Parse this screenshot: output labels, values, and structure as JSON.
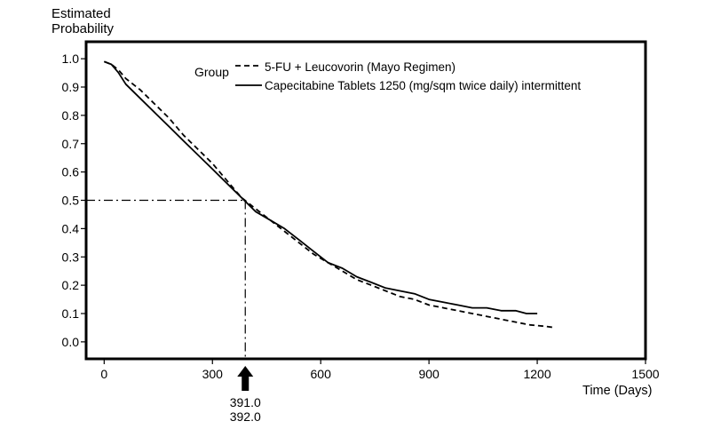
{
  "chart_data": {
    "type": "line",
    "ylabel_lines": [
      "Estimated",
      "Probability"
    ],
    "xlabel": "Time (Days)",
    "xlim": [
      -50,
      1500
    ],
    "ylim": [
      -0.06,
      1.06
    ],
    "x_ticks": [
      0,
      300,
      600,
      900,
      1200,
      1500
    ],
    "y_ticks": [
      0.0,
      0.1,
      0.2,
      0.3,
      0.4,
      0.5,
      0.6,
      0.7,
      0.8,
      0.9,
      1.0
    ],
    "y_tick_labels": [
      "0.0",
      "0.1",
      "0.2",
      "0.3",
      "0.4",
      "0.5",
      "0.6",
      "0.7",
      "0.8",
      "0.9",
      "1.0"
    ],
    "grid": false,
    "legend": {
      "title": "Group",
      "placement": "top-center",
      "entries": [
        {
          "label": "5-FU + Leucovorin (Mayo Regimen)",
          "style": "dashed"
        },
        {
          "label": "Capecitabine Tablets 1250 (mg/sqm twice daily) intermittent",
          "style": "solid"
        }
      ]
    },
    "series": [
      {
        "name": "5-FU + Leucovorin (Mayo Regimen)",
        "style": "dashed",
        "x": [
          0,
          20,
          40,
          60,
          100,
          140,
          180,
          220,
          260,
          300,
          340,
          380,
          420,
          460,
          500,
          540,
          580,
          620,
          660,
          700,
          740,
          780,
          820,
          860,
          900,
          940,
          980,
          1020,
          1060,
          1100,
          1140,
          1180,
          1220,
          1250
        ],
        "y": [
          0.99,
          0.98,
          0.96,
          0.93,
          0.89,
          0.84,
          0.79,
          0.73,
          0.68,
          0.63,
          0.57,
          0.51,
          0.47,
          0.43,
          0.39,
          0.35,
          0.31,
          0.28,
          0.25,
          0.22,
          0.2,
          0.18,
          0.16,
          0.15,
          0.13,
          0.12,
          0.11,
          0.1,
          0.09,
          0.08,
          0.07,
          0.06,
          0.055,
          0.05
        ]
      },
      {
        "name": "Capecitabine Tablets 1250 (mg/sqm twice daily) intermittent",
        "style": "solid",
        "x": [
          0,
          20,
          40,
          60,
          100,
          140,
          180,
          220,
          260,
          300,
          340,
          380,
          420,
          460,
          500,
          540,
          580,
          620,
          660,
          700,
          740,
          780,
          820,
          860,
          900,
          940,
          980,
          1020,
          1060,
          1100,
          1140,
          1170,
          1200
        ],
        "y": [
          0.99,
          0.98,
          0.95,
          0.91,
          0.86,
          0.81,
          0.76,
          0.71,
          0.66,
          0.61,
          0.56,
          0.51,
          0.46,
          0.43,
          0.4,
          0.36,
          0.32,
          0.28,
          0.26,
          0.23,
          0.21,
          0.19,
          0.18,
          0.17,
          0.15,
          0.14,
          0.13,
          0.12,
          0.12,
          0.11,
          0.11,
          0.1,
          0.1
        ]
      }
    ],
    "median_reference": {
      "probability": 0.5,
      "time": 391,
      "labels": [
        "391.0",
        "392.0"
      ]
    }
  }
}
